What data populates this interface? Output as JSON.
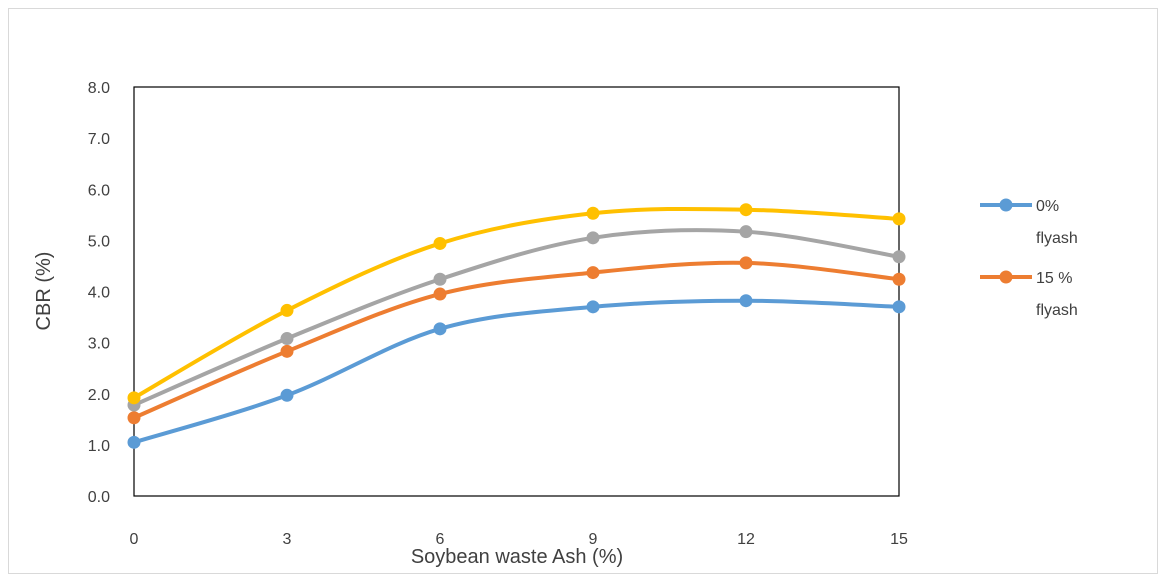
{
  "chart_data": {
    "type": "line",
    "title": "",
    "xlabel": "Soybean waste Ash (%)",
    "ylabel": "CBR (%)",
    "x": [
      0,
      3,
      6,
      9,
      12,
      15
    ],
    "x_tick_labels": [
      "0",
      "3",
      "6",
      "9",
      "12",
      "15"
    ],
    "ylim": [
      0,
      8
    ],
    "y_tick_labels": [
      "0.0",
      "1.0",
      "2.0",
      "3.0",
      "4.0",
      "5.0",
      "6.0",
      "7.0",
      "8.0"
    ],
    "smooth": true,
    "grid": false,
    "legend_position": "right",
    "series": [
      {
        "legend_label": "0%\nflyash",
        "color": "#5b9bd5",
        "values": [
          1.05,
          1.97,
          3.27,
          3.7,
          3.82,
          3.7
        ]
      },
      {
        "legend_label": "15 %\nflyash",
        "color": "#ed7d31",
        "values": [
          1.53,
          2.83,
          3.95,
          4.37,
          4.56,
          4.24
        ]
      },
      {
        "color": "#a5a5a5",
        "values": [
          1.78,
          3.08,
          4.24,
          5.05,
          5.17,
          4.68
        ]
      },
      {
        "color": "#ffc000",
        "values": [
          1.92,
          3.63,
          4.94,
          5.53,
          5.6,
          5.42
        ]
      }
    ]
  }
}
